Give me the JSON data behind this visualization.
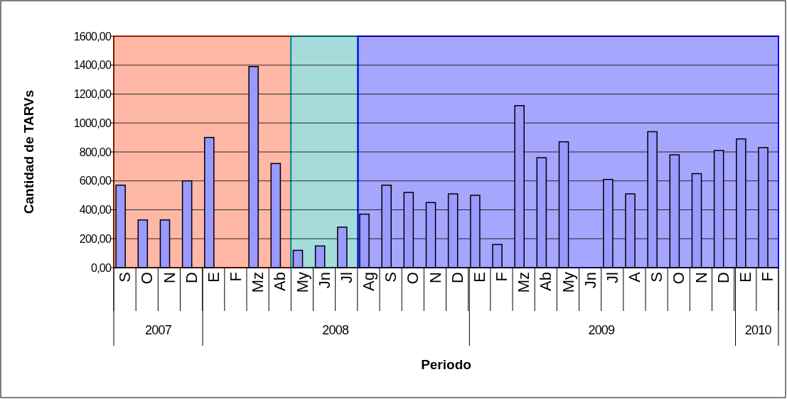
{
  "chart_data": {
    "type": "bar",
    "xlabel": "Periodo",
    "ylabel": "Cantidad de TARVs",
    "categories": [
      "S",
      "O",
      "N",
      "D",
      "E",
      "F",
      "Mz",
      "Ab",
      "My",
      "Jn",
      "Jl",
      "Ag",
      "S",
      "O",
      "N",
      "D",
      "E",
      "F",
      "Mz",
      "Ab",
      "My",
      "Jn",
      "Jl",
      "A",
      "S",
      "O",
      "N",
      "D",
      "E",
      "F"
    ],
    "series": [
      {
        "color": "#9999ff",
        "values": [
          570,
          330,
          330,
          600,
          900,
          null,
          1390,
          720,
          120,
          150,
          280,
          370,
          570,
          520,
          450,
          510,
          500,
          160,
          1120,
          760,
          870,
          null,
          610,
          510,
          940,
          780,
          650,
          810,
          890,
          830
        ]
      }
    ],
    "ylim": [
      0,
      1600
    ],
    "yticks": [
      {
        "value": 0,
        "label": "0,00"
      },
      {
        "value": 200,
        "label": "200,00"
      },
      {
        "value": 400,
        "label": "400,00"
      },
      {
        "value": 600,
        "label": "600,00"
      },
      {
        "value": 800,
        "label": "800,00"
      },
      {
        "value": 1000,
        "label": "1000,00"
      },
      {
        "value": 1200,
        "label": "1200,00"
      },
      {
        "value": 1400,
        "label": "1400,00"
      },
      {
        "value": 1600,
        "label": "1600,00"
      }
    ],
    "grid": "y",
    "x2lim": [
      "2007-09",
      "2010-03"
    ],
    "x2ticks": [
      {
        "value": "2007-11",
        "label": "2007"
      },
      {
        "value": "2008-07",
        "label": "2008"
      },
      {
        "value": "2009-07",
        "label": "2009"
      },
      {
        "value": "2010-02",
        "label": "2010"
      }
    ],
    "bands": [
      {
        "axis": "x2",
        "from": "2007-09",
        "to": "2008-05",
        "color": "#ff3300"
      },
      {
        "axis": "x2",
        "from": "2008-05",
        "to": "2008-08",
        "color": "#009999"
      },
      {
        "axis": "x2",
        "from": "2008-08",
        "to": "2010-03",
        "color": "#0000ff"
      }
    ]
  }
}
